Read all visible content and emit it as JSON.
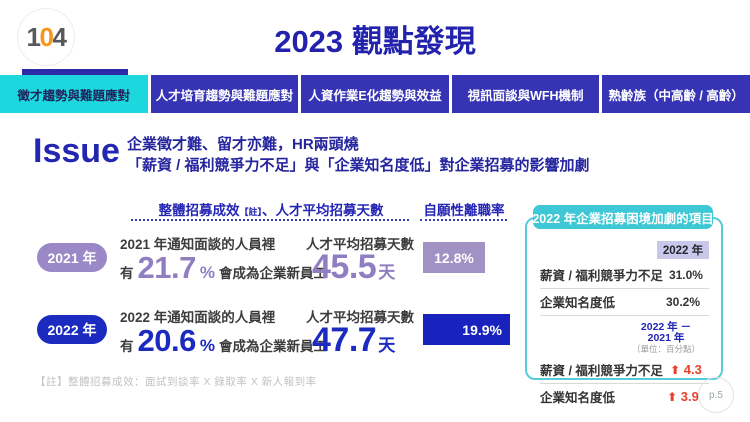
{
  "brand": {
    "logo_1": "1",
    "logo_0": "0",
    "logo_4": "4"
  },
  "header": {
    "title": "2023 觀點發現"
  },
  "tabs": [
    {
      "label": "徵才趨勢與難題應對",
      "active": true
    },
    {
      "label": "人才培育趨勢與難題應對",
      "active": false
    },
    {
      "label": "人資作業E化趨勢與效益",
      "active": false
    },
    {
      "label": "視訊面談與WFH機制",
      "active": false
    },
    {
      "label": "熟齡族（中高齡 / 高齡）",
      "active": false
    }
  ],
  "issue": {
    "label": "Issue",
    "line1": "企業徵才難、留才亦難，HR兩頭燒",
    "line2": "「薪資 / 福利競爭力不足」與「企業知名度低」對企業招募的影響加劇"
  },
  "metrics": {
    "col1_header_main": "整體招募成效",
    "col1_header_note": "【註】",
    "col1_header_rest": "、人才平均招募天數",
    "col2_header": "自願性離職率",
    "rows": [
      {
        "year": "2021 年",
        "line1": "2021 年通知面談的人員裡",
        "prefix": "有",
        "big_value": "21.7",
        "big_unit": "%",
        "suffix": "會成為企業新員工",
        "days_label": "人才平均招募天數",
        "days_value": "45.5",
        "days_unit": "天",
        "turnover_rate": "12.8%"
      },
      {
        "year": "2022 年",
        "line1": "2022 年通知面談的人員裡",
        "prefix": "有",
        "big_value": "20.6",
        "big_unit": "%",
        "suffix": "會成為企業新員工",
        "days_label": "人才平均招募天數",
        "days_value": "47.7",
        "days_unit": "天",
        "turnover_rate": "19.9%"
      }
    ]
  },
  "side_panel": {
    "title": "2022 年企業招募困境加劇的項目",
    "col_header": "2022 年",
    "rows_2022": [
      {
        "label": "薪資 / 福利競爭力不足",
        "value": "31.0%"
      },
      {
        "label": "企業知名度低",
        "value": "30.2%"
      }
    ],
    "diff_header_line1": "2022 年 －",
    "diff_header_line2": "2021 年",
    "diff_unit": "（單位：百分點）",
    "diff_rows": [
      {
        "label": "薪資 / 福利競爭力不足",
        "arrow": "⬆",
        "value": "4.3"
      },
      {
        "label": "企業知名度低",
        "arrow": "⬆",
        "value": "3.9"
      }
    ]
  },
  "footnote": "【註】整體招募成效：面試到談率 X 錄取率 X 新人報到率",
  "page_number": "p.5",
  "colors": {
    "title_blue": "#2322ac",
    "tab_bg": "#3634b5",
    "tab_active_bg": "#1cd8de",
    "purple_pill": "#9a89c6",
    "purple_text": "#8f7ec0",
    "purple_box": "#a292c4",
    "blue_main": "#1b2abf",
    "teal": "#3ec7d4",
    "lavender_cell": "#c9c7ea",
    "red_up": "#e8402c",
    "brand_orange": "#f7941d"
  }
}
